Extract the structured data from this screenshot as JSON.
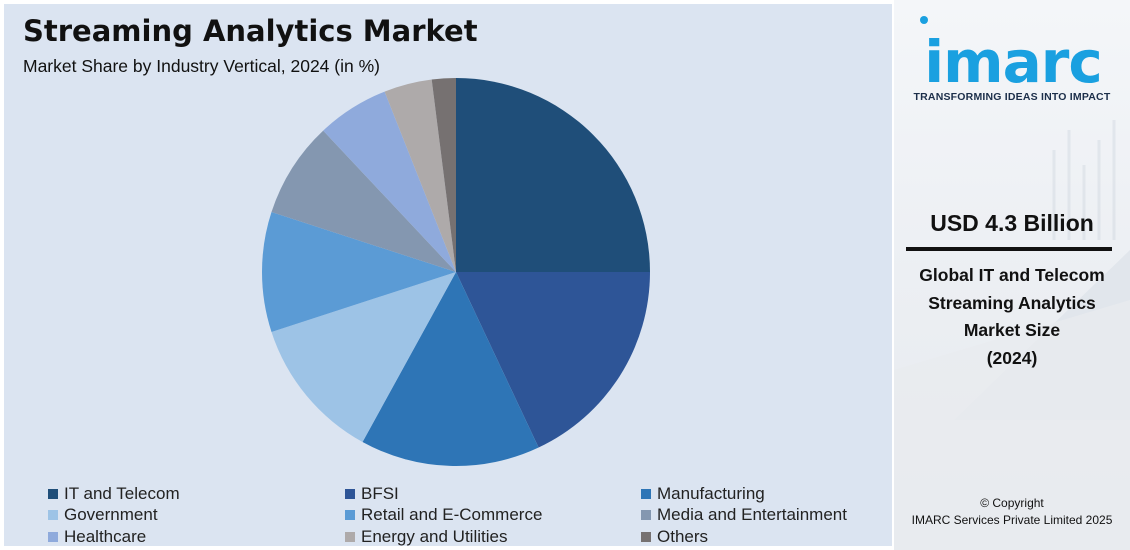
{
  "chart_data": {
    "type": "pie",
    "title": "Streaming Analytics Market",
    "subtitle": "Market Share by Industry Vertical, 2024 (in %)",
    "categories": [
      "IT and Telecom",
      "BFSI",
      "Manufacturing",
      "Government",
      "Retail and E-Commerce",
      "Media and Entertainment",
      "Healthcare",
      "Energy and Utilities",
      "Others"
    ],
    "values": [
      25,
      18,
      15,
      12,
      10,
      8,
      6,
      4,
      2
    ],
    "colors": [
      "#1f4e79",
      "#2e5597",
      "#2e75b6",
      "#9dc3e6",
      "#5b9bd5",
      "#8497b0",
      "#8faadc",
      "#aeaaaa",
      "#767171"
    ],
    "legend": "bottom"
  },
  "side_panel": {
    "logo": "imarc",
    "tagline": "TRANSFORMING IDEAS INTO IMPACT",
    "market_value": "USD 4.3 Billion",
    "description_lines": [
      "Global IT and Telecom",
      "Streaming Analytics",
      "Market Size",
      "(2024)"
    ],
    "copyright_line1": "© Copyright",
    "copyright_line2": "IMARC Services Private Limited 2025"
  }
}
